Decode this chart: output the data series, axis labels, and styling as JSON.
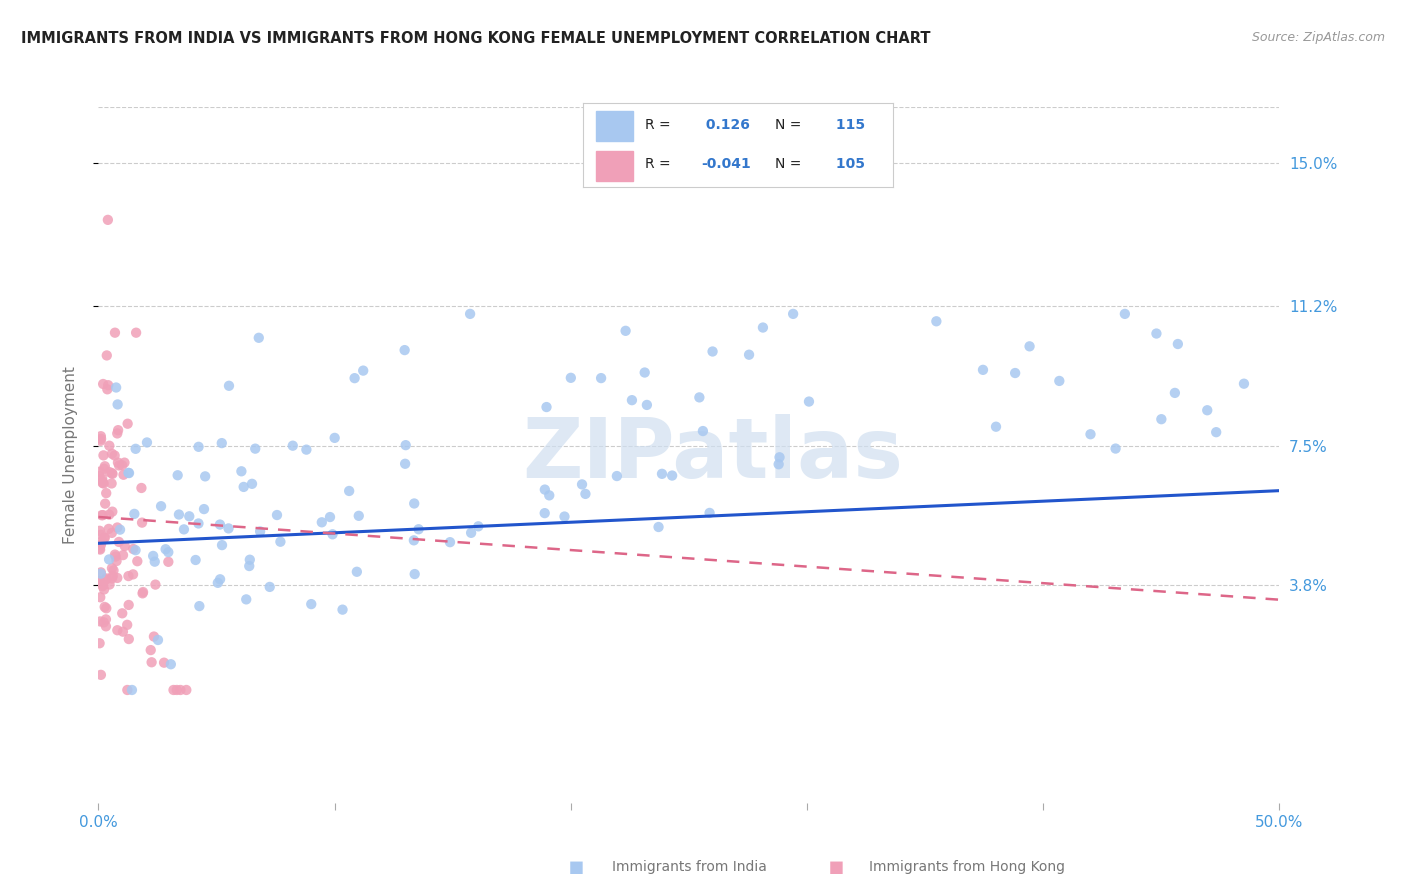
{
  "title": "IMMIGRANTS FROM INDIA VS IMMIGRANTS FROM HONG KONG FEMALE UNEMPLOYMENT CORRELATION CHART",
  "source": "Source: ZipAtlas.com",
  "xlabel_india": "Immigrants from India",
  "xlabel_hk": "Immigrants from Hong Kong",
  "ylabel": "Female Unemployment",
  "xlim": [
    0.0,
    0.5
  ],
  "ylim": [
    -0.02,
    0.165
  ],
  "yticks": [
    0.038,
    0.075,
    0.112,
    0.15
  ],
  "ytick_labels": [
    "3.8%",
    "7.5%",
    "11.2%",
    "15.0%"
  ],
  "xticks": [
    0.0,
    0.1,
    0.2,
    0.3,
    0.4,
    0.5
  ],
  "xtick_labels": [
    "0.0%",
    "",
    "",
    "",
    "",
    "50.0%"
  ],
  "india_R": 0.126,
  "india_N": 115,
  "hk_R": -0.041,
  "hk_N": 105,
  "india_color": "#a8c8f0",
  "hk_color": "#f0a0b8",
  "india_line_color": "#2255cc",
  "hk_line_color": "#dd6688",
  "trend_line_india": {
    "x0": 0.0,
    "y0": 0.049,
    "x1": 0.5,
    "y1": 0.063
  },
  "trend_line_hk": {
    "x0": 0.0,
    "y0": 0.056,
    "x1": 0.5,
    "y1": 0.034
  },
  "watermark": "ZIPatlas",
  "watermark_color": "#d0dff0",
  "background_color": "#ffffff",
  "grid_color": "#cccccc",
  "title_color": "#222222",
  "axis_label_color": "#777777",
  "tick_color": "#4499dd",
  "legend_text_color_black": "#222222",
  "legend_text_color_blue": "#3377cc"
}
